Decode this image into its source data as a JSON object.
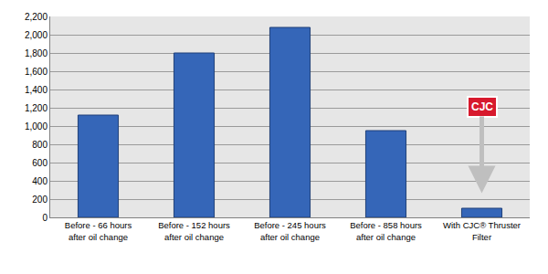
{
  "chart_data": {
    "type": "bar",
    "categories": [
      "Before - 66 hours after oil change",
      "Before - 152 hours after oil change",
      "Before - 245 hours after oil change",
      "Before - 858 hours after oil change",
      "With CJC® Thruster Filter"
    ],
    "values": [
      1120,
      1800,
      2080,
      950,
      100
    ],
    "color": "#3566b8",
    "ylim": [
      0,
      2200
    ],
    "yticks": [
      0,
      200,
      400,
      600,
      800,
      {
        "value": 1000,
        "label": "1,000"
      },
      {
        "value": 1200,
        "label": "1,200"
      },
      {
        "value": 1400,
        "label": "1,400"
      },
      {
        "value": 1600,
        "label": "1,600"
      },
      {
        "value": 1800,
        "label": "1,800"
      },
      {
        "value": 2000,
        "label": "2,000"
      },
      {
        "value": 2200,
        "label": "2,200"
      }
    ],
    "grid": true,
    "annotations": [
      "CJC"
    ]
  }
}
